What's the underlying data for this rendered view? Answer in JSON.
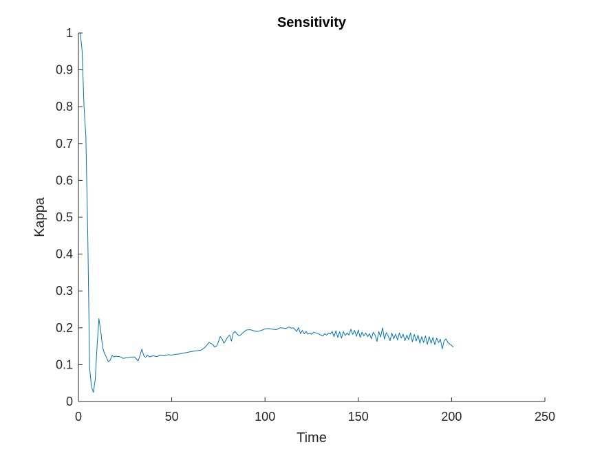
{
  "chart_data": {
    "type": "line",
    "title": "Sensitivity",
    "xlabel": "Time",
    "ylabel": "Kappa",
    "xlim": [
      0,
      250
    ],
    "ylim": [
      0,
      1
    ],
    "xticks": [
      "0",
      "50",
      "100",
      "150",
      "200",
      "250"
    ],
    "yticks": [
      "0",
      "0.1",
      "0.2",
      "0.3",
      "0.4",
      "0.5",
      "0.6",
      "0.7",
      "0.8",
      "0.9",
      "1"
    ],
    "grid": false,
    "series_color": "#0072BD",
    "series": [
      {
        "x": [
          1,
          2,
          3,
          4,
          5,
          6,
          7,
          8,
          9,
          10,
          11,
          12,
          13,
          14,
          15,
          16,
          17,
          18,
          19,
          20,
          22,
          24,
          26,
          28,
          30,
          32,
          33,
          34,
          35,
          36,
          37,
          38,
          40,
          42,
          44,
          46,
          48,
          50,
          52,
          54,
          56,
          58,
          60,
          62,
          64,
          66,
          68,
          70,
          72,
          73,
          74,
          75,
          76,
          77,
          78,
          79,
          80,
          81,
          82,
          83,
          84,
          85,
          86,
          87,
          88,
          90,
          92,
          94,
          96,
          98,
          100,
          102,
          104,
          106,
          108,
          110,
          111,
          112,
          113,
          114,
          115,
          116,
          117,
          118,
          119,
          120,
          121,
          122,
          123,
          124,
          125,
          126,
          128,
          130,
          131,
          132,
          133,
          134,
          135,
          136,
          137,
          138,
          139,
          140,
          141,
          142,
          143,
          144,
          145,
          146,
          147,
          148,
          149,
          150,
          151,
          152,
          153,
          154,
          155,
          156,
          157,
          158,
          159,
          160,
          161,
          162,
          163,
          164,
          165,
          166,
          167,
          168,
          169,
          170,
          171,
          172,
          173,
          174,
          175,
          176,
          177,
          178,
          179,
          180,
          181,
          182,
          183,
          184,
          185,
          186,
          187,
          188,
          189,
          190,
          191,
          192,
          193,
          194,
          195,
          196,
          197,
          198,
          199,
          200,
          201
        ],
        "y": [
          1.0,
          0.95,
          0.8,
          0.72,
          0.45,
          0.09,
          0.04,
          0.025,
          0.06,
          0.15,
          0.225,
          0.19,
          0.145,
          0.13,
          0.12,
          0.108,
          0.112,
          0.125,
          0.121,
          0.123,
          0.122,
          0.117,
          0.119,
          0.12,
          0.121,
          0.11,
          0.125,
          0.142,
          0.125,
          0.12,
          0.126,
          0.121,
          0.124,
          0.122,
          0.126,
          0.124,
          0.127,
          0.126,
          0.128,
          0.129,
          0.131,
          0.133,
          0.135,
          0.137,
          0.138,
          0.14,
          0.148,
          0.16,
          0.155,
          0.148,
          0.15,
          0.162,
          0.176,
          0.17,
          0.158,
          0.166,
          0.175,
          0.18,
          0.164,
          0.186,
          0.19,
          0.183,
          0.179,
          0.181,
          0.186,
          0.194,
          0.195,
          0.192,
          0.19,
          0.193,
          0.197,
          0.198,
          0.196,
          0.195,
          0.2,
          0.199,
          0.198,
          0.2,
          0.202,
          0.199,
          0.2,
          0.196,
          0.19,
          0.201,
          0.184,
          0.193,
          0.184,
          0.19,
          0.183,
          0.186,
          0.182,
          0.188,
          0.185,
          0.18,
          0.178,
          0.184,
          0.18,
          0.186,
          0.183,
          0.19,
          0.176,
          0.192,
          0.174,
          0.189,
          0.172,
          0.19,
          0.179,
          0.186,
          0.18,
          0.196,
          0.182,
          0.193,
          0.177,
          0.194,
          0.174,
          0.188,
          0.178,
          0.186,
          0.176,
          0.184,
          0.17,
          0.188,
          0.18,
          0.163,
          0.19,
          0.175,
          0.2,
          0.169,
          0.187,
          0.178,
          0.165,
          0.186,
          0.17,
          0.183,
          0.167,
          0.186,
          0.172,
          0.183,
          0.165,
          0.18,
          0.168,
          0.186,
          0.162,
          0.182,
          0.164,
          0.18,
          0.158,
          0.176,
          0.16,
          0.178,
          0.155,
          0.176,
          0.158,
          0.174,
          0.154,
          0.172,
          0.16,
          0.169,
          0.143,
          0.165,
          0.17,
          0.16,
          0.156,
          0.152,
          0.148
        ]
      }
    ]
  }
}
